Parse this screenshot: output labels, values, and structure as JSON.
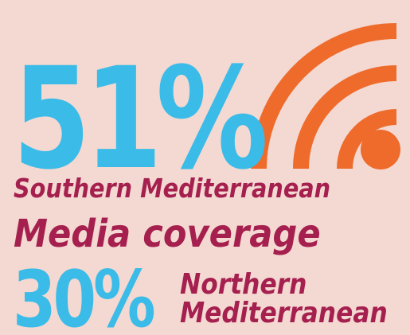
{
  "infographic": {
    "south_percent": "51%",
    "south_region": "Southern Mediterranean",
    "topic": "Media coverage",
    "north_percent": "30%",
    "north_region_line1": "Northern",
    "north_region_line2": "Mediterranean"
  },
  "icon": "broadcast-signal-icon",
  "colors": {
    "background": "#f3d9d2",
    "percent_blue": "#3bbbe8",
    "label_crimson": "#a6204f",
    "signal_orange": "#ef6b2c"
  }
}
